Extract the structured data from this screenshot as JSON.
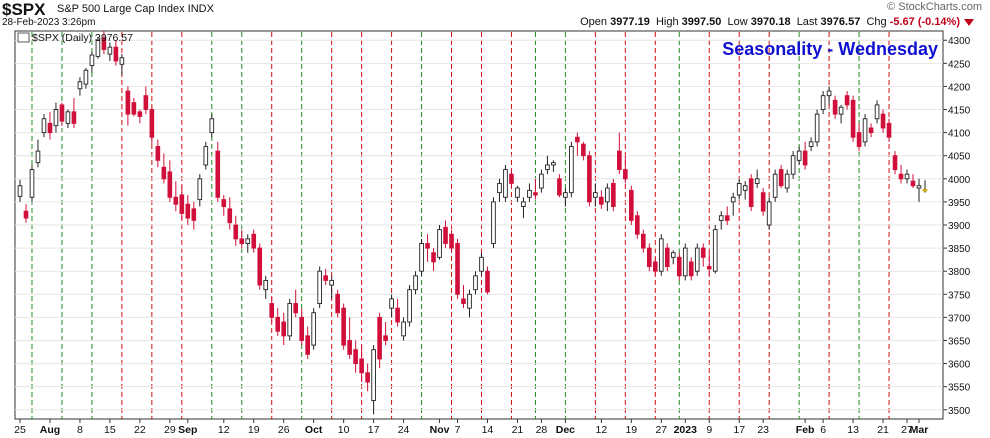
{
  "header": {
    "symbol": "$SPX",
    "description": "S&P 500 Large Cap Index  INDX",
    "timestamp": "28-Feb-2023 3:26pm",
    "watermark": "© StockCharts.com",
    "open_label": "Open",
    "open": "3977.19",
    "high_label": "High",
    "high": "3997.50",
    "low_label": "Low",
    "low": "3970.18",
    "last_label": "Last",
    "last": "3976.57",
    "chg_label": "Chg",
    "chg": "-5.67 (-0.14%)"
  },
  "colors": {
    "up": "#ffffff",
    "down": "#d0103a",
    "grid_green": "#1f8a1f",
    "grid_red": "#d01010",
    "title": "#1010d0"
  },
  "chart_data": {
    "type": "candlestick",
    "legend": "$SPX (Daily) 3976.57",
    "title": "Seasonality - Wednesday",
    "ylim": [
      3480,
      4320
    ],
    "yticks": [
      3500,
      3550,
      3600,
      3650,
      3700,
      3750,
      3800,
      3850,
      3900,
      3950,
      4000,
      4050,
      4100,
      4150,
      4200,
      4250,
      4300
    ],
    "xticks": [
      {
        "label": "25",
        "bold": false,
        "i": 0
      },
      {
        "label": "Aug",
        "bold": true,
        "i": 5
      },
      {
        "label": "8",
        "bold": false,
        "i": 10
      },
      {
        "label": "15",
        "bold": false,
        "i": 15
      },
      {
        "label": "22",
        "bold": false,
        "i": 20
      },
      {
        "label": "29",
        "bold": false,
        "i": 25
      },
      {
        "label": "Sep",
        "bold": true,
        "i": 28
      },
      {
        "label": "12",
        "bold": false,
        "i": 34
      },
      {
        "label": "19",
        "bold": false,
        "i": 39
      },
      {
        "label": "26",
        "bold": false,
        "i": 44
      },
      {
        "label": "Oct",
        "bold": true,
        "i": 49
      },
      {
        "label": "10",
        "bold": false,
        "i": 54
      },
      {
        "label": "17",
        "bold": false,
        "i": 59
      },
      {
        "label": "24",
        "bold": false,
        "i": 64
      },
      {
        "label": "Nov",
        "bold": true,
        "i": 70
      },
      {
        "label": "7",
        "bold": false,
        "i": 73
      },
      {
        "label": "14",
        "bold": false,
        "i": 78
      },
      {
        "label": "21",
        "bold": false,
        "i": 83
      },
      {
        "label": "28",
        "bold": false,
        "i": 87
      },
      {
        "label": "Dec",
        "bold": true,
        "i": 91
      },
      {
        "label": "12",
        "bold": false,
        "i": 97
      },
      {
        "label": "19",
        "bold": false,
        "i": 102
      },
      {
        "label": "27",
        "bold": false,
        "i": 107
      },
      {
        "label": "2023",
        "bold": true,
        "i": 111
      },
      {
        "label": "9",
        "bold": false,
        "i": 115
      },
      {
        "label": "17",
        "bold": false,
        "i": 120
      },
      {
        "label": "23",
        "bold": false,
        "i": 124
      },
      {
        "label": "Feb",
        "bold": true,
        "i": 131
      },
      {
        "label": "6",
        "bold": false,
        "i": 134
      },
      {
        "label": "13",
        "bold": false,
        "i": 139
      },
      {
        "label": "21",
        "bold": false,
        "i": 144
      },
      {
        "label": "27",
        "bold": false,
        "i": 148
      },
      {
        "label": "Mar",
        "bold": true,
        "i": 150
      }
    ],
    "wednesday_lines": [
      {
        "i": 2,
        "color": "green"
      },
      {
        "i": 7,
        "color": "green"
      },
      {
        "i": 12,
        "color": "green"
      },
      {
        "i": 17,
        "color": "red"
      },
      {
        "i": 22,
        "color": "red"
      },
      {
        "i": 27,
        "color": "red"
      },
      {
        "i": 32,
        "color": "green"
      },
      {
        "i": 37,
        "color": "green"
      },
      {
        "i": 42,
        "color": "red"
      },
      {
        "i": 47,
        "color": "green"
      },
      {
        "i": 52,
        "color": "red"
      },
      {
        "i": 57,
        "color": "red"
      },
      {
        "i": 62,
        "color": "red"
      },
      {
        "i": 67,
        "color": "green"
      },
      {
        "i": 72,
        "color": "red"
      },
      {
        "i": 77,
        "color": "red"
      },
      {
        "i": 82,
        "color": "red"
      },
      {
        "i": 86,
        "color": "green"
      },
      {
        "i": 91,
        "color": "green"
      },
      {
        "i": 96,
        "color": "red"
      },
      {
        "i": 101,
        "color": "red"
      },
      {
        "i": 106,
        "color": "red"
      },
      {
        "i": 110,
        "color": "green"
      },
      {
        "i": 115,
        "color": "red"
      },
      {
        "i": 120,
        "color": "red"
      },
      {
        "i": 125,
        "color": "red"
      },
      {
        "i": 130,
        "color": "green"
      },
      {
        "i": 135,
        "color": "red"
      },
      {
        "i": 140,
        "color": "green"
      },
      {
        "i": 145,
        "color": "red"
      }
    ],
    "candles": [
      {
        "o": 3962,
        "h": 3998,
        "l": 3950,
        "c": 3985
      },
      {
        "o": 3930,
        "h": 3945,
        "l": 3905,
        "c": 3915
      },
      {
        "o": 3960,
        "h": 4030,
        "l": 3950,
        "c": 4020
      },
      {
        "o": 4035,
        "h": 4085,
        "l": 4025,
        "c": 4060
      },
      {
        "o": 4100,
        "h": 4140,
        "l": 4090,
        "c": 4130
      },
      {
        "o": 4120,
        "h": 4145,
        "l": 4085,
        "c": 4100
      },
      {
        "o": 4115,
        "h": 4165,
        "l": 4100,
        "c": 4150
      },
      {
        "o": 4160,
        "h": 4165,
        "l": 4115,
        "c": 4125
      },
      {
        "o": 4120,
        "h": 4150,
        "l": 4110,
        "c": 4145
      },
      {
        "o": 4145,
        "h": 4175,
        "l": 4110,
        "c": 4120
      },
      {
        "o": 4195,
        "h": 4220,
        "l": 4180,
        "c": 4210
      },
      {
        "o": 4205,
        "h": 4240,
        "l": 4195,
        "c": 4235
      },
      {
        "o": 4245,
        "h": 4275,
        "l": 4230,
        "c": 4268
      },
      {
        "o": 4265,
        "h": 4305,
        "l": 4260,
        "c": 4300
      },
      {
        "o": 4305,
        "h": 4320,
        "l": 4270,
        "c": 4280
      },
      {
        "o": 4270,
        "h": 4295,
        "l": 4255,
        "c": 4285
      },
      {
        "o": 4285,
        "h": 4300,
        "l": 4245,
        "c": 4255
      },
      {
        "o": 4248,
        "h": 4270,
        "l": 4225,
        "c": 4262
      },
      {
        "o": 4190,
        "h": 4200,
        "l": 4115,
        "c": 4140
      },
      {
        "o": 4165,
        "h": 4175,
        "l": 4135,
        "c": 4140
      },
      {
        "o": 4145,
        "h": 4150,
        "l": 4120,
        "c": 4135
      },
      {
        "o": 4180,
        "h": 4200,
        "l": 4140,
        "c": 4150
      },
      {
        "o": 4150,
        "h": 4155,
        "l": 4075,
        "c": 4090
      },
      {
        "o": 4070,
        "h": 4085,
        "l": 4025,
        "c": 4040
      },
      {
        "o": 4025,
        "h": 4055,
        "l": 3990,
        "c": 4000
      },
      {
        "o": 4015,
        "h": 4040,
        "l": 3950,
        "c": 3960
      },
      {
        "o": 3960,
        "h": 3995,
        "l": 3930,
        "c": 3945
      },
      {
        "o": 3965,
        "h": 3985,
        "l": 3910,
        "c": 3925
      },
      {
        "o": 3945,
        "h": 3965,
        "l": 3900,
        "c": 3915
      },
      {
        "o": 3935,
        "h": 3950,
        "l": 3890,
        "c": 3910
      },
      {
        "o": 3955,
        "h": 4010,
        "l": 3940,
        "c": 4000
      },
      {
        "o": 4030,
        "h": 4080,
        "l": 4020,
        "c": 4070
      },
      {
        "o": 4100,
        "h": 4140,
        "l": 4090,
        "c": 4130
      },
      {
        "o": 4060,
        "h": 4080,
        "l": 3950,
        "c": 3960
      },
      {
        "o": 3955,
        "h": 3965,
        "l": 3920,
        "c": 3940
      },
      {
        "o": 3935,
        "h": 3960,
        "l": 3890,
        "c": 3905
      },
      {
        "o": 3900,
        "h": 3920,
        "l": 3855,
        "c": 3870
      },
      {
        "o": 3870,
        "h": 3890,
        "l": 3850,
        "c": 3860
      },
      {
        "o": 3860,
        "h": 3880,
        "l": 3840,
        "c": 3870
      },
      {
        "o": 3880,
        "h": 3890,
        "l": 3840,
        "c": 3850
      },
      {
        "o": 3850,
        "h": 3860,
        "l": 3760,
        "c": 3770
      },
      {
        "o": 3760,
        "h": 3790,
        "l": 3740,
        "c": 3780
      },
      {
        "o": 3730,
        "h": 3745,
        "l": 3690,
        "c": 3700
      },
      {
        "o": 3700,
        "h": 3720,
        "l": 3660,
        "c": 3670
      },
      {
        "o": 3690,
        "h": 3710,
        "l": 3640,
        "c": 3660
      },
      {
        "o": 3660,
        "h": 3740,
        "l": 3650,
        "c": 3730
      },
      {
        "o": 3730,
        "h": 3760,
        "l": 3700,
        "c": 3710
      },
      {
        "o": 3700,
        "h": 3720,
        "l": 3640,
        "c": 3650
      },
      {
        "o": 3660,
        "h": 3680,
        "l": 3610,
        "c": 3620
      },
      {
        "o": 3640,
        "h": 3720,
        "l": 3630,
        "c": 3710
      },
      {
        "o": 3730,
        "h": 3810,
        "l": 3720,
        "c": 3800
      },
      {
        "o": 3790,
        "h": 3805,
        "l": 3770,
        "c": 3780
      },
      {
        "o": 3770,
        "h": 3790,
        "l": 3740,
        "c": 3780
      },
      {
        "o": 3750,
        "h": 3760,
        "l": 3700,
        "c": 3710
      },
      {
        "o": 3720,
        "h": 3730,
        "l": 3630,
        "c": 3640
      },
      {
        "o": 3650,
        "h": 3700,
        "l": 3610,
        "c": 3620
      },
      {
        "o": 3630,
        "h": 3650,
        "l": 3580,
        "c": 3600
      },
      {
        "o": 3610,
        "h": 3640,
        "l": 3560,
        "c": 3580
      },
      {
        "o": 3580,
        "h": 3600,
        "l": 3540,
        "c": 3560
      },
      {
        "o": 3520,
        "h": 3640,
        "l": 3490,
        "c": 3630
      },
      {
        "o": 3700,
        "h": 3710,
        "l": 3590,
        "c": 3610
      },
      {
        "o": 3660,
        "h": 3690,
        "l": 3640,
        "c": 3650
      },
      {
        "o": 3720,
        "h": 3750,
        "l": 3700,
        "c": 3740
      },
      {
        "o": 3720,
        "h": 3740,
        "l": 3680,
        "c": 3690
      },
      {
        "o": 3660,
        "h": 3700,
        "l": 3650,
        "c": 3690
      },
      {
        "o": 3690,
        "h": 3770,
        "l": 3680,
        "c": 3760
      },
      {
        "o": 3760,
        "h": 3800,
        "l": 3750,
        "c": 3790
      },
      {
        "o": 3800,
        "h": 3870,
        "l": 3790,
        "c": 3860
      },
      {
        "o": 3860,
        "h": 3880,
        "l": 3820,
        "c": 3850
      },
      {
        "o": 3840,
        "h": 3850,
        "l": 3800,
        "c": 3820
      },
      {
        "o": 3830,
        "h": 3900,
        "l": 3825,
        "c": 3890
      },
      {
        "o": 3895,
        "h": 3910,
        "l": 3850,
        "c": 3860
      },
      {
        "o": 3880,
        "h": 3890,
        "l": 3840,
        "c": 3850
      },
      {
        "o": 3860,
        "h": 3870,
        "l": 3740,
        "c": 3750
      },
      {
        "o": 3740,
        "h": 3770,
        "l": 3720,
        "c": 3730
      },
      {
        "o": 3720,
        "h": 3760,
        "l": 3700,
        "c": 3750
      },
      {
        "o": 3760,
        "h": 3800,
        "l": 3750,
        "c": 3790
      },
      {
        "o": 3800,
        "h": 3840,
        "l": 3790,
        "c": 3830
      },
      {
        "o": 3800,
        "h": 3810,
        "l": 3750,
        "c": 3755
      },
      {
        "o": 3860,
        "h": 3960,
        "l": 3850,
        "c": 3950
      },
      {
        "o": 3970,
        "h": 4000,
        "l": 3950,
        "c": 3990
      },
      {
        "o": 3960,
        "h": 4030,
        "l": 3950,
        "c": 4020
      },
      {
        "o": 4010,
        "h": 4020,
        "l": 3980,
        "c": 3990
      },
      {
        "o": 3960,
        "h": 3985,
        "l": 3950,
        "c": 3980
      },
      {
        "o": 3940,
        "h": 3960,
        "l": 3915,
        "c": 3950
      },
      {
        "o": 3960,
        "h": 3990,
        "l": 3950,
        "c": 3975
      },
      {
        "o": 3970,
        "h": 4000,
        "l": 3955,
        "c": 3965
      },
      {
        "o": 3980,
        "h": 4020,
        "l": 3970,
        "c": 4010
      },
      {
        "o": 4020,
        "h": 4050,
        "l": 4010,
        "c": 4030
      },
      {
        "o": 4030,
        "h": 4040,
        "l": 4015,
        "c": 4035
      },
      {
        "o": 4000,
        "h": 4010,
        "l": 3960,
        "c": 3965
      },
      {
        "o": 3960,
        "h": 3980,
        "l": 3940,
        "c": 3970
      },
      {
        "o": 3970,
        "h": 4080,
        "l": 3960,
        "c": 4070
      },
      {
        "o": 4090,
        "h": 4100,
        "l": 4050,
        "c": 4080
      },
      {
        "o": 4075,
        "h": 4080,
        "l": 4040,
        "c": 4050
      },
      {
        "o": 4050,
        "h": 4060,
        "l": 3940,
        "c": 3950
      },
      {
        "o": 3960,
        "h": 3990,
        "l": 3940,
        "c": 3970
      },
      {
        "o": 3960,
        "h": 3975,
        "l": 3935,
        "c": 3945
      },
      {
        "o": 3950,
        "h": 3990,
        "l": 3930,
        "c": 3980
      },
      {
        "o": 3990,
        "h": 4000,
        "l": 3930,
        "c": 3940
      },
      {
        "o": 4060,
        "h": 4100,
        "l": 4010,
        "c": 4020
      },
      {
        "o": 4020,
        "h": 4050,
        "l": 3990,
        "c": 4000
      },
      {
        "o": 3975,
        "h": 3985,
        "l": 3900,
        "c": 3910
      },
      {
        "o": 3920,
        "h": 3930,
        "l": 3870,
        "c": 3880
      },
      {
        "o": 3880,
        "h": 3890,
        "l": 3840,
        "c": 3850
      },
      {
        "o": 3850,
        "h": 3860,
        "l": 3800,
        "c": 3810
      },
      {
        "o": 3820,
        "h": 3830,
        "l": 3790,
        "c": 3800
      },
      {
        "o": 3800,
        "h": 3880,
        "l": 3790,
        "c": 3870
      },
      {
        "o": 3850,
        "h": 3860,
        "l": 3800,
        "c": 3810
      },
      {
        "o": 3830,
        "h": 3845,
        "l": 3815,
        "c": 3840
      },
      {
        "o": 3830,
        "h": 3840,
        "l": 3780,
        "c": 3790
      },
      {
        "o": 3790,
        "h": 3860,
        "l": 3780,
        "c": 3850
      },
      {
        "o": 3820,
        "h": 3830,
        "l": 3780,
        "c": 3790
      },
      {
        "o": 3800,
        "h": 3860,
        "l": 3790,
        "c": 3850
      },
      {
        "o": 3850,
        "h": 3860,
        "l": 3810,
        "c": 3830
      },
      {
        "o": 3810,
        "h": 3840,
        "l": 3790,
        "c": 3805
      },
      {
        "o": 3800,
        "h": 3900,
        "l": 3795,
        "c": 3890
      },
      {
        "o": 3910,
        "h": 3930,
        "l": 3890,
        "c": 3920
      },
      {
        "o": 3920,
        "h": 3940,
        "l": 3900,
        "c": 3910
      },
      {
        "o": 3950,
        "h": 3970,
        "l": 3920,
        "c": 3960
      },
      {
        "o": 3965,
        "h": 4000,
        "l": 3955,
        "c": 3990
      },
      {
        "o": 3975,
        "h": 3995,
        "l": 3955,
        "c": 3985
      },
      {
        "o": 4000,
        "h": 4010,
        "l": 3930,
        "c": 3940
      },
      {
        "o": 3990,
        "h": 4020,
        "l": 3980,
        "c": 4000
      },
      {
        "o": 3970,
        "h": 3980,
        "l": 3920,
        "c": 3930
      },
      {
        "o": 3900,
        "h": 3960,
        "l": 3890,
        "c": 3950
      },
      {
        "o": 3960,
        "h": 4020,
        "l": 3950,
        "c": 4010
      },
      {
        "o": 4020,
        "h": 4030,
        "l": 3980,
        "c": 3985
      },
      {
        "o": 3980,
        "h": 4020,
        "l": 3970,
        "c": 4010
      },
      {
        "o": 4010,
        "h": 4060,
        "l": 4000,
        "c": 4050
      },
      {
        "o": 4040,
        "h": 4070,
        "l": 4030,
        "c": 4060
      },
      {
        "o": 4060,
        "h": 4080,
        "l": 4020,
        "c": 4030
      },
      {
        "o": 4070,
        "h": 4090,
        "l": 4060,
        "c": 4080
      },
      {
        "o": 4080,
        "h": 4150,
        "l": 4070,
        "c": 4140
      },
      {
        "o": 4150,
        "h": 4190,
        "l": 4140,
        "c": 4180
      },
      {
        "o": 4180,
        "h": 4200,
        "l": 4160,
        "c": 4190
      },
      {
        "o": 4170,
        "h": 4180,
        "l": 4130,
        "c": 4140
      },
      {
        "o": 4140,
        "h": 4160,
        "l": 4120,
        "c": 4155
      },
      {
        "o": 4180,
        "h": 4190,
        "l": 4150,
        "c": 4160
      },
      {
        "o": 4170,
        "h": 4180,
        "l": 4080,
        "c": 4090
      },
      {
        "o": 4100,
        "h": 4120,
        "l": 4060,
        "c": 4070
      },
      {
        "o": 4080,
        "h": 4140,
        "l": 4070,
        "c": 4130
      },
      {
        "o": 4110,
        "h": 4120,
        "l": 4090,
        "c": 4100
      },
      {
        "o": 4130,
        "h": 4170,
        "l": 4120,
        "c": 4160
      },
      {
        "o": 4140,
        "h": 4150,
        "l": 4100,
        "c": 4110
      },
      {
        "o": 4120,
        "h": 4130,
        "l": 4080,
        "c": 4090
      },
      {
        "o": 4050,
        "h": 4060,
        "l": 4010,
        "c": 4020
      },
      {
        "o": 4010,
        "h": 4030,
        "l": 3990,
        "c": 4000
      },
      {
        "o": 4000,
        "h": 4020,
        "l": 3990,
        "c": 4010
      },
      {
        "o": 3995,
        "h": 4010,
        "l": 3980,
        "c": 3985
      },
      {
        "o": 3980,
        "h": 4000,
        "l": 3950,
        "c": 3985
      },
      {
        "o": 3977,
        "h": 3997,
        "l": 3970,
        "c": 3977
      }
    ]
  }
}
